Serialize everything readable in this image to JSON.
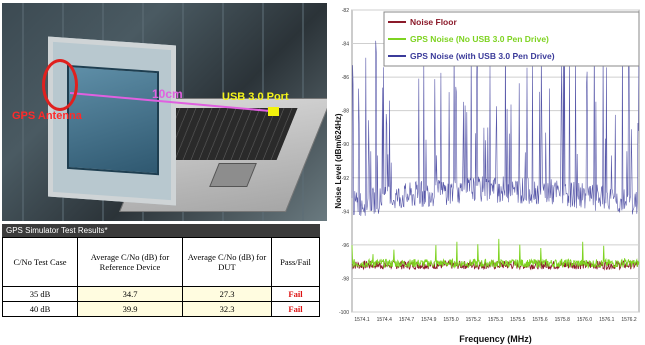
{
  "photo": {
    "gps_label": "GPS Antenna",
    "usb_label": "USB 3.0 Port",
    "distance_label": "10cm"
  },
  "results": {
    "title": "GPS Simulator Test Results*",
    "headers": [
      "C/No Test Case",
      "Average C/No (dB) for Reference Device",
      "Average C/No (dB) for DUT",
      "Pass/Fail"
    ],
    "rows": [
      {
        "case": "35 dB",
        "ref": "34.7",
        "dut": "27.3",
        "result": "Fail"
      },
      {
        "case": "40 dB",
        "ref": "39.9",
        "dut": "32.3",
        "result": "Fail"
      }
    ],
    "fail_color": "#dd1111"
  },
  "chart_data": {
    "type": "line",
    "title": "",
    "xlabel": "Frequency (MHz)",
    "ylabel": "Noise Level (dBm/624Hz)",
    "x_ticks": [
      "1574.1",
      "1574.4",
      "1574.7",
      "1574.9",
      "1575.0",
      "1575.2",
      "1575.3",
      "1575.5",
      "1575.6",
      "1575.8",
      "1576.0",
      "1576.1",
      "1576.2"
    ],
    "y_ticks": [
      "-82",
      "-84",
      "-86",
      "-88",
      "-90",
      "-92",
      "-94",
      "-96",
      "-98",
      "-100"
    ],
    "ylim": [
      -100,
      -82
    ],
    "grid": true,
    "legend_position": "top",
    "series": [
      {
        "name": "Noise Floor",
        "color": "#8b1a2a",
        "baseline": -97.2
      },
      {
        "name": "GPS Noise (No USB 3.0 Pen Drive)",
        "color": "#7ed321",
        "baseline": -97.1
      },
      {
        "name": "GPS Noise (with USB 3.0 Pen Drive)",
        "color": "#3b3b9a",
        "baseline": -93.6
      }
    ]
  }
}
